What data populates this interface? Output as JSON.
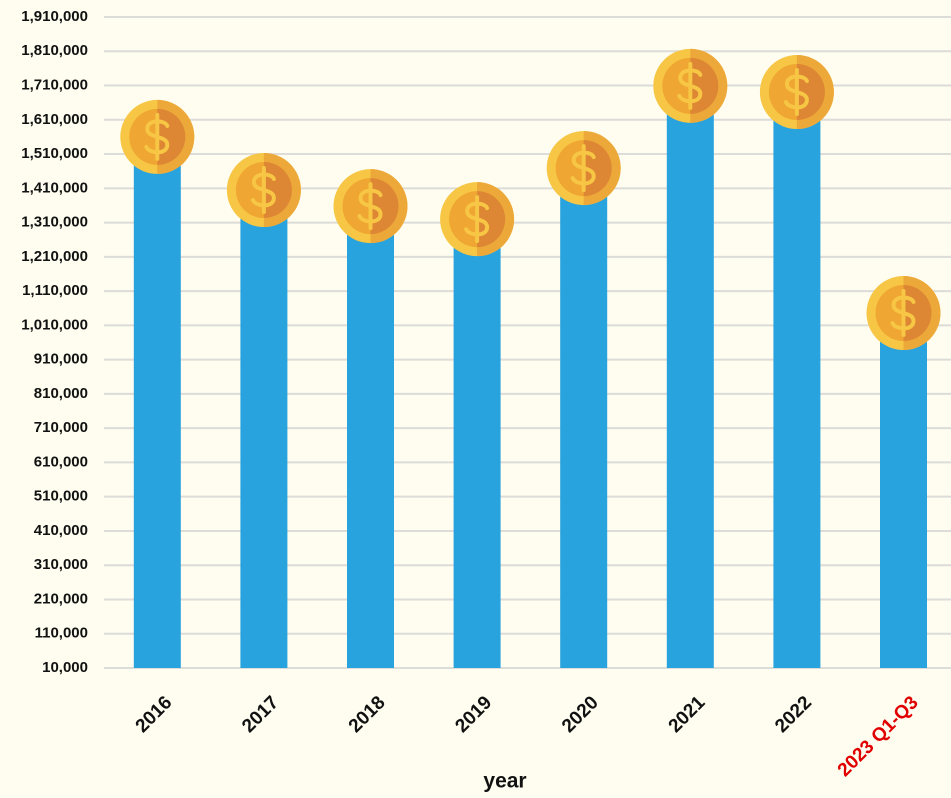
{
  "chart_data": {
    "type": "bar",
    "x_label": "year",
    "categories": [
      "2016",
      "2017",
      "2018",
      "2019",
      "2020",
      "2021",
      "2022",
      "2023 Q1-Q3"
    ],
    "category_label_colors": [
      "#111111",
      "#111111",
      "#111111",
      "#111111",
      "#111111",
      "#111111",
      "#111111",
      "#e00000"
    ],
    "values": [
      1560000,
      1405000,
      1358000,
      1320000,
      1469000,
      1709000,
      1691000,
      1046000
    ],
    "color": "#29a3de",
    "ylim": [
      10000,
      1910000
    ],
    "yticks": [
      {
        "value": 10000,
        "label": "10,000"
      },
      {
        "value": 110000,
        "label": "110,000"
      },
      {
        "value": 210000,
        "label": "210,000"
      },
      {
        "value": 310000,
        "label": "310,000"
      },
      {
        "value": 410000,
        "label": "410,000"
      },
      {
        "value": 510000,
        "label": "510,000"
      },
      {
        "value": 610000,
        "label": "610,000"
      },
      {
        "value": 710000,
        "label": "710,000"
      },
      {
        "value": 810000,
        "label": "810,000"
      },
      {
        "value": 910000,
        "label": "910,000"
      },
      {
        "value": 1010000,
        "label": "1,010,000"
      },
      {
        "value": 1110000,
        "label": "1,110,000"
      },
      {
        "value": 1210000,
        "label": "1,210,000"
      },
      {
        "value": 1310000,
        "label": "1,310,000"
      },
      {
        "value": 1410000,
        "label": "1,410,000"
      },
      {
        "value": 1510000,
        "label": "1,510,000"
      },
      {
        "value": 1610000,
        "label": "1,610,000"
      },
      {
        "value": 1710000,
        "label": "1,710,000"
      },
      {
        "value": 1810000,
        "label": "1,810,000"
      },
      {
        "value": 1910000,
        "label": "1,910,000"
      }
    ],
    "grid": true
  }
}
